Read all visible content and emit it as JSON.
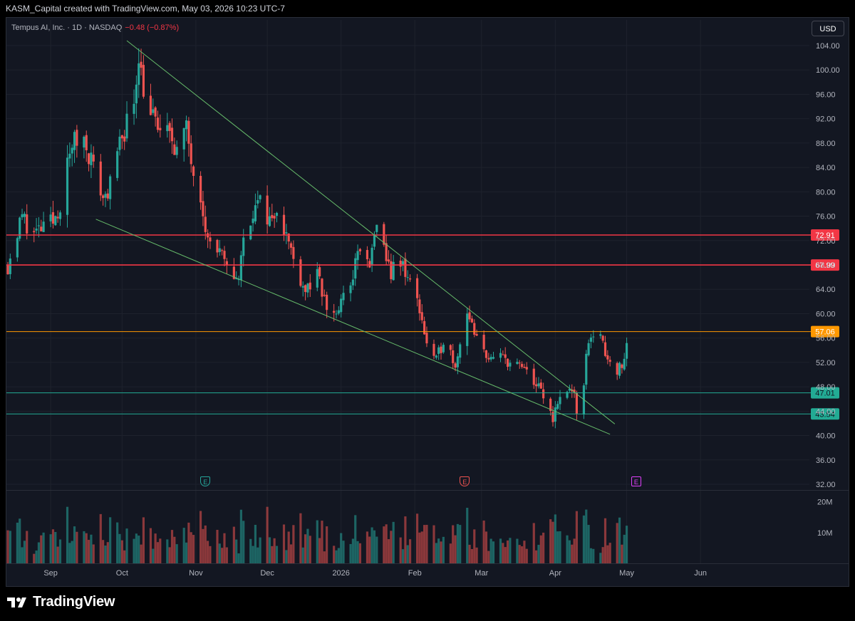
{
  "header": {
    "title": "KASM_Capital created with TradingView.com, May 03, 2026 10:23 UTC-7"
  },
  "legend": {
    "symbol": "Tempus AI, Inc. · 1D · NASDAQ",
    "change": "−0.48 (−0.87%)"
  },
  "currency_label": "USD",
  "branding": "TradingView",
  "colors": {
    "up": "#26a69a",
    "down": "#ef5350",
    "resistance": "#f23645",
    "pivot": "#ff9800",
    "support": "#22ab94",
    "trendline": "#66bb6a",
    "background": "#131722",
    "grid": "#1e222d"
  },
  "chart_data": {
    "type": "candlestick",
    "y_axis": {
      "ticks": [
        "104.00",
        "100.00",
        "96.00",
        "92.00",
        "88.00",
        "84.00",
        "80.00",
        "76.00",
        "72.00",
        "68.00",
        "64.00",
        "60.00",
        "56.00",
        "52.00",
        "48.00",
        "44.00",
        "40.00",
        "36.00",
        "32.00"
      ],
      "range": [
        32,
        104
      ]
    },
    "x_axis": {
      "ticks": [
        {
          "label": "Sep",
          "date": "2025-09-01"
        },
        {
          "label": "Oct",
          "date": "2025-10-01"
        },
        {
          "label": "Nov",
          "date": "2025-11-01"
        },
        {
          "label": "Dec",
          "date": "2025-12-01"
        },
        {
          "label": "2026",
          "date": "2026-01-01"
        },
        {
          "label": "Feb",
          "date": "2026-02-01"
        },
        {
          "label": "Mar",
          "date": "2026-03-01"
        },
        {
          "label": "Apr",
          "date": "2026-04-01"
        },
        {
          "label": "May",
          "date": "2026-05-01"
        },
        {
          "label": "Jun",
          "date": "2026-06-01"
        }
      ],
      "range": [
        "2025-08-14",
        "2026-06-30"
      ]
    },
    "volume_axis": {
      "ticks": [
        "20M",
        "10M"
      ],
      "max": 22
    },
    "horizontal_levels": [
      {
        "price": 72.91,
        "label": "72.91",
        "kind": "resistance"
      },
      {
        "price": 67.99,
        "label": "67.99",
        "kind": "resistance"
      },
      {
        "price": 57.06,
        "label": "57.06",
        "kind": "pivot"
      },
      {
        "price": 47.01,
        "label": "47.01",
        "kind": "support"
      },
      {
        "price": 43.54,
        "label": "43.54",
        "kind": "support"
      }
    ],
    "trendlines": [
      {
        "from": {
          "date": "2025-10-03",
          "price": 104.8
        },
        "to": {
          "date": "2026-04-26",
          "price": 41.9
        }
      },
      {
        "from": {
          "date": "2025-09-20",
          "price": 75.5
        },
        "to": {
          "date": "2026-04-24",
          "price": 40.2
        }
      }
    ],
    "earnings": [
      {
        "date": "2025-11-05",
        "label": "E",
        "kind": "past-up"
      },
      {
        "date": "2026-02-22",
        "label": "E",
        "kind": "past-down"
      },
      {
        "date": "2026-05-05",
        "label": "E",
        "kind": "upcoming"
      }
    ],
    "anchors": [
      {
        "date": "2025-08-14",
        "close": 68
      },
      {
        "date": "2025-08-20",
        "close": 76
      },
      {
        "date": "2025-08-25",
        "close": 73
      },
      {
        "date": "2025-09-02",
        "close": 75
      },
      {
        "date": "2025-09-05",
        "close": 78
      },
      {
        "date": "2025-09-10",
        "close": 88
      },
      {
        "date": "2025-09-15",
        "close": 89
      },
      {
        "date": "2025-09-19",
        "close": 84
      },
      {
        "date": "2025-09-23",
        "close": 79
      },
      {
        "date": "2025-09-26",
        "close": 81
      },
      {
        "date": "2025-10-01",
        "close": 89
      },
      {
        "date": "2025-10-06",
        "close": 95
      },
      {
        "date": "2025-10-08",
        "close": 103
      },
      {
        "date": "2025-10-10",
        "close": 97
      },
      {
        "date": "2025-10-14",
        "close": 92
      },
      {
        "date": "2025-10-17",
        "close": 90
      },
      {
        "date": "2025-10-22",
        "close": 89
      },
      {
        "date": "2025-10-24",
        "close": 87
      },
      {
        "date": "2025-10-28",
        "close": 90
      },
      {
        "date": "2025-10-31",
        "close": 84
      },
      {
        "date": "2025-11-03",
        "close": 80
      },
      {
        "date": "2025-11-06",
        "close": 72
      },
      {
        "date": "2025-11-11",
        "close": 70
      },
      {
        "date": "2025-11-14",
        "close": 67
      },
      {
        "date": "2025-11-19",
        "close": 66
      },
      {
        "date": "2025-11-21",
        "close": 72
      },
      {
        "date": "2025-11-25",
        "close": 77
      },
      {
        "date": "2025-11-28",
        "close": 78
      },
      {
        "date": "2025-12-03",
        "close": 75
      },
      {
        "date": "2025-12-05",
        "close": 78
      },
      {
        "date": "2025-12-09",
        "close": 73
      },
      {
        "date": "2025-12-12",
        "close": 69
      },
      {
        "date": "2025-12-17",
        "close": 64
      },
      {
        "date": "2025-12-22",
        "close": 66
      },
      {
        "date": "2025-12-26",
        "close": 61
      },
      {
        "date": "2025-12-30",
        "close": 60
      },
      {
        "date": "2026-01-05",
        "close": 65
      },
      {
        "date": "2026-01-09",
        "close": 71
      },
      {
        "date": "2026-01-13",
        "close": 67
      },
      {
        "date": "2026-01-15",
        "close": 74
      },
      {
        "date": "2026-01-19",
        "close": 70
      },
      {
        "date": "2026-01-22",
        "close": 67
      },
      {
        "date": "2026-01-27",
        "close": 68
      },
      {
        "date": "2026-01-30",
        "close": 65
      },
      {
        "date": "2026-02-03",
        "close": 61
      },
      {
        "date": "2026-02-06",
        "close": 55
      },
      {
        "date": "2026-02-10",
        "close": 52
      },
      {
        "date": "2026-02-13",
        "close": 56
      },
      {
        "date": "2026-02-18",
        "close": 52
      },
      {
        "date": "2026-02-20",
        "close": 55
      },
      {
        "date": "2026-02-23",
        "close": 61
      },
      {
        "date": "2026-02-26",
        "close": 56
      },
      {
        "date": "2026-03-02",
        "close": 54
      },
      {
        "date": "2026-03-06",
        "close": 52
      },
      {
        "date": "2026-03-10",
        "close": 53
      },
      {
        "date": "2026-03-13",
        "close": 52
      },
      {
        "date": "2026-03-18",
        "close": 51
      },
      {
        "date": "2026-03-23",
        "close": 49
      },
      {
        "date": "2026-03-26",
        "close": 47
      },
      {
        "date": "2026-03-31",
        "close": 43
      },
      {
        "date": "2026-04-03",
        "close": 46
      },
      {
        "date": "2026-04-07",
        "close": 48
      },
      {
        "date": "2026-04-09",
        "close": 46
      },
      {
        "date": "2026-04-10",
        "close": 43
      },
      {
        "date": "2026-04-13",
        "close": 49
      },
      {
        "date": "2026-04-15",
        "close": 56
      },
      {
        "date": "2026-04-17",
        "close": 57
      },
      {
        "date": "2026-04-21",
        "close": 55
      },
      {
        "date": "2026-04-23",
        "close": 53
      },
      {
        "date": "2026-04-27",
        "close": 51
      },
      {
        "date": "2026-04-29",
        "close": 51
      },
      {
        "date": "2026-05-01",
        "close": 55
      }
    ]
  }
}
